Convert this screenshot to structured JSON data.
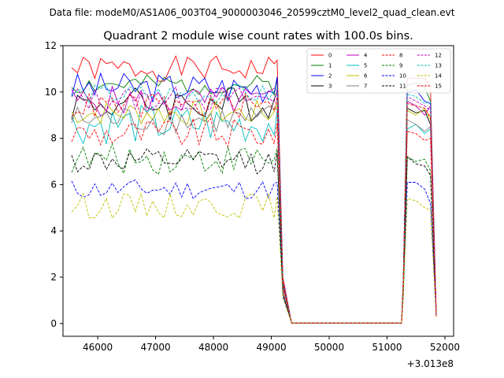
{
  "chart_data": {
    "type": "line",
    "suptitle": "Data file: modeM0/AS1A06_003T04_9000003046_20599cztM0_level2_quad_clean.evt",
    "title": "Quadrant 2 module wise count rates with 100.0s bins.",
    "xlabel": "",
    "ylabel": "",
    "x_offset_label": "+3.013e8",
    "xlim": [
      45400,
      52150
    ],
    "ylim": [
      -0.55,
      12
    ],
    "xticks": [
      46000,
      47000,
      48000,
      49000,
      50000,
      51000,
      52000
    ],
    "xtick_labels": [
      "46000",
      "47000",
      "48000",
      "49000",
      "50000",
      "51000",
      "52000"
    ],
    "yticks": [
      0,
      2,
      4,
      6,
      8,
      10,
      12
    ],
    "ytick_labels": [
      "0",
      "2",
      "4",
      "6",
      "8",
      "10",
      "12"
    ],
    "legend_position": "top-right",
    "x_segments": [
      {
        "start": 45550,
        "end": 49150,
        "step": 100
      },
      {
        "start": 49150,
        "end": 51250,
        "step": 100,
        "flat": true
      },
      {
        "start": 51250,
        "end": 51850,
        "step": 100
      }
    ],
    "series": [
      {
        "name": "0",
        "color": "#ff0000",
        "dash": "solid",
        "level": 11.0,
        "amp": 0.25,
        "seed": 1,
        "second": [
          2.0,
          10.6,
          10.6,
          10.6,
          10.2,
          0.4
        ]
      },
      {
        "name": "1",
        "color": "#008000",
        "dash": "solid",
        "level": 10.3,
        "amp": 0.2,
        "seed": 2,
        "second": [
          1.8,
          10.3,
          10.4,
          10.2,
          9.6,
          0.35
        ]
      },
      {
        "name": "2",
        "color": "#0000ff",
        "dash": "solid",
        "level": 10.2,
        "amp": 0.3,
        "seed": 3,
        "second": [
          1.8,
          10.0,
          10.1,
          9.6,
          9.5,
          0.35
        ]
      },
      {
        "name": "3",
        "color": "#000000",
        "dash": "solid",
        "level": 9.5,
        "amp": 0.35,
        "seed": 4,
        "second": [
          1.6,
          9.3,
          9.1,
          9.2,
          8.6,
          0.3
        ]
      },
      {
        "name": "4",
        "color": "#bf00bf",
        "dash": "solid",
        "level": 9.6,
        "amp": 0.3,
        "seed": 5,
        "second": [
          1.7,
          9.6,
          9.4,
          9.0,
          9.4,
          0.35
        ]
      },
      {
        "name": "5",
        "color": "#00bfbf",
        "dash": "solid",
        "level": 8.6,
        "amp": 0.4,
        "seed": 6,
        "second": [
          1.6,
          8.4,
          8.6,
          8.2,
          8.4,
          0.3
        ]
      },
      {
        "name": "6",
        "color": "#bfbf00",
        "dash": "solid",
        "level": 9.1,
        "amp": 0.25,
        "seed": 7,
        "second": [
          1.7,
          9.2,
          9.0,
          9.3,
          8.8,
          0.3
        ]
      },
      {
        "name": "7",
        "color": "#808080",
        "dash": "solid",
        "level": 8.8,
        "amp": 0.3,
        "seed": 8,
        "second": [
          1.6,
          8.8,
          8.6,
          8.3,
          8.5,
          0.3
        ]
      },
      {
        "name": "8",
        "color": "#ff0000",
        "dash": "dashed",
        "level": 8.2,
        "amp": 0.3,
        "seed": 9,
        "second": [
          1.5,
          8.3,
          8.2,
          7.9,
          8.0,
          0.3
        ]
      },
      {
        "name": "9",
        "color": "#008000",
        "dash": "dashed",
        "level": 7.1,
        "amp": 0.3,
        "seed": 10,
        "second": [
          1.3,
          7.2,
          7.0,
          7.1,
          6.6,
          0.3
        ]
      },
      {
        "name": "10",
        "color": "#0000ff",
        "dash": "dashed",
        "level": 5.8,
        "amp": 0.2,
        "seed": 11,
        "second": [
          1.2,
          6.1,
          6.1,
          5.8,
          5.2,
          0.3
        ]
      },
      {
        "name": "11",
        "color": "#000000",
        "dash": "dashed",
        "level": 7.0,
        "amp": 0.25,
        "seed": 12,
        "second": [
          1.3,
          7.2,
          6.9,
          6.8,
          6.4,
          0.3
        ]
      },
      {
        "name": "12",
        "color": "#bf00bf",
        "dash": "dashed",
        "level": 9.7,
        "amp": 0.25,
        "seed": 13,
        "second": [
          1.7,
          9.8,
          9.6,
          9.4,
          9.2,
          0.35
        ]
      },
      {
        "name": "13",
        "color": "#00bfbf",
        "dash": "dashed",
        "level": 9.9,
        "amp": 0.2,
        "seed": 14,
        "second": [
          1.7,
          9.9,
          9.8,
          9.5,
          9.6,
          0.35
        ]
      },
      {
        "name": "14",
        "color": "#bfbf00",
        "dash": "dashed",
        "level": 5.1,
        "amp": 0.25,
        "seed": 15,
        "second": [
          1.1,
          5.4,
          5.3,
          5.0,
          4.9,
          0.25
        ]
      },
      {
        "name": "15",
        "color": "#ff0000",
        "dash": "dashed",
        "level": 9.4,
        "amp": 0.25,
        "seed": 16,
        "second": [
          1.7,
          9.5,
          9.4,
          9.3,
          8.9,
          0.3
        ]
      }
    ]
  }
}
